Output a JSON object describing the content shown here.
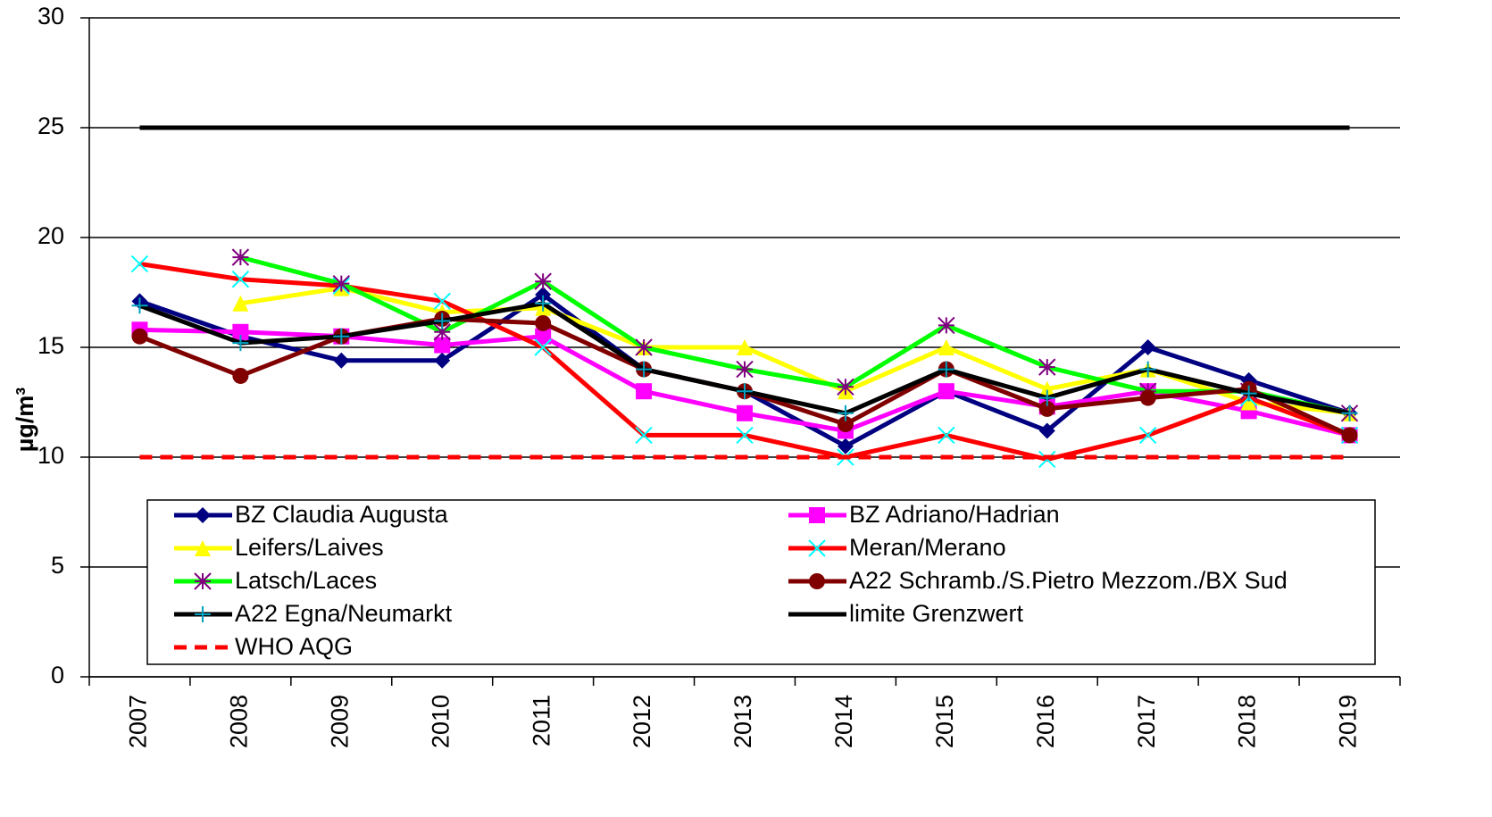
{
  "chart_data": {
    "type": "line",
    "y_label": "µg/m³",
    "categories": [
      "2007",
      "2008",
      "2009",
      "2010",
      "2011",
      "2012",
      "2013",
      "2014",
      "2015",
      "2016",
      "2017",
      "2018",
      "2019"
    ],
    "ylim": [
      0,
      30
    ],
    "yticks": [
      0,
      5,
      10,
      15,
      20,
      25,
      30
    ],
    "grid": true,
    "legend": "lower center",
    "series": [
      {
        "name": "BZ Claudia Augusta",
        "color": "#000080",
        "marker": "diamond",
        "marker_color": "#000080",
        "values": [
          17.1,
          15.5,
          14.4,
          14.4,
          17.4,
          14,
          13,
          10.5,
          13,
          11.2,
          15,
          13.5,
          12
        ]
      },
      {
        "name": "BZ Adriano/Hadrian",
        "color": "#ff00ff",
        "marker": "square",
        "marker_color": "#ff00ff",
        "values": [
          15.8,
          15.7,
          15.5,
          15.1,
          15.5,
          13,
          12,
          11.2,
          13,
          12.3,
          13,
          12.1,
          11
        ]
      },
      {
        "name": "Leifers/Laives",
        "color": "#ffff00",
        "marker": "triangle",
        "marker_color": "#ffff00",
        "values": [
          null,
          17,
          17.7,
          16.6,
          16.8,
          15,
          15,
          13,
          15,
          13.1,
          14,
          12.5,
          12
        ]
      },
      {
        "name": "Meran/Merano",
        "color": "#ff0000",
        "marker": "x",
        "marker_color": "#00ffff",
        "values": [
          18.8,
          18.1,
          17.8,
          17.1,
          15,
          11,
          11,
          10,
          11,
          9.9,
          11,
          12.7,
          11
        ]
      },
      {
        "name": "Latsch/Laces",
        "color": "#00ff00",
        "marker": "star",
        "marker_color": "#800080",
        "values": [
          null,
          19.1,
          17.9,
          15.7,
          18,
          15,
          14,
          13.2,
          16,
          14.1,
          13,
          13,
          12
        ]
      },
      {
        "name": "A22 Schramb./S.Pietro Mezzom./BX Sud",
        "color": "#800000",
        "marker": "circle",
        "marker_color": "#800000",
        "values": [
          15.5,
          13.7,
          15.5,
          16.3,
          16.1,
          14,
          13,
          11.5,
          14,
          12.2,
          12.7,
          13.1,
          11
        ]
      },
      {
        "name": "A22 Egna/Neumarkt",
        "color": "#000000",
        "marker": "plus",
        "marker_color": "#00a0c0",
        "values": [
          16.9,
          15.2,
          15.5,
          16.2,
          17,
          14,
          13,
          12,
          14,
          12.7,
          14,
          12.9,
          12
        ]
      },
      {
        "name": "limite Grenzwert",
        "color": "#000000",
        "marker": "none",
        "values": [
          25,
          25,
          25,
          25,
          25,
          25,
          25,
          25,
          25,
          25,
          25,
          25,
          25
        ]
      },
      {
        "name": "WHO AQG",
        "color": "#ff0000",
        "marker": "none",
        "dash": true,
        "values": [
          10,
          10,
          10,
          10,
          10,
          10,
          10,
          10,
          10,
          10,
          10,
          10,
          10
        ]
      }
    ]
  }
}
